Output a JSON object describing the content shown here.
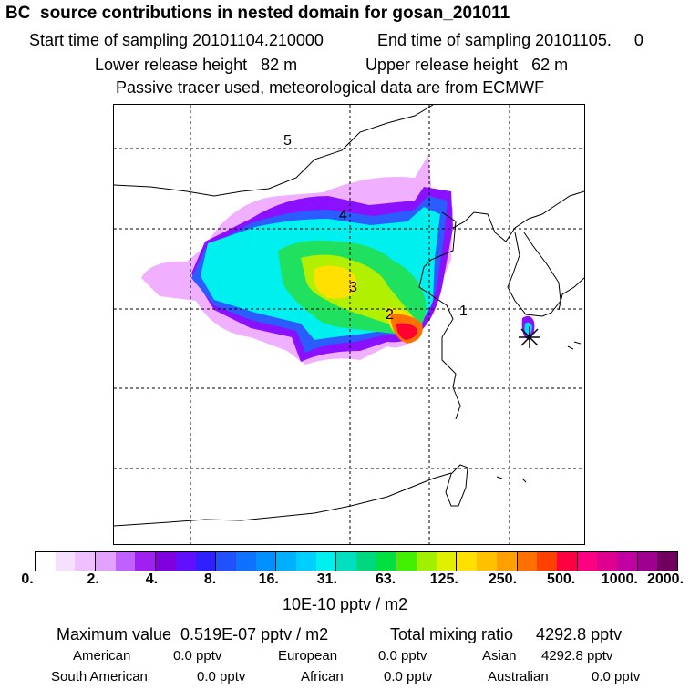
{
  "header": {
    "title": "BC  source contributions in nested domain for gosan_201011",
    "start_label": "Start time of sampling 20101104.210000",
    "end_label": "End time of sampling 20101105.     0",
    "lower_label": "Lower release height   82 m",
    "upper_label": "Upper release height   62 m",
    "tracer_note": "Passive tracer used, meteorological data are from ECMWF"
  },
  "map": {
    "region_labels": [
      "1",
      "2",
      "3",
      "4",
      "5"
    ],
    "receptor_marker": "star-icon"
  },
  "colorbar": {
    "ticks": [
      "0.",
      "2.",
      "4.",
      "8.",
      "16.",
      "31.",
      "63.",
      "125.",
      "250.",
      "500.",
      "1000.",
      "2000."
    ],
    "unit": "10E-10 pptv / m2",
    "colors": [
      "#ffffff",
      "#f7e0ff",
      "#efc0ff",
      "#e2a0ff",
      "#c060ff",
      "#a020f0",
      "#8000e0",
      "#6010ff",
      "#3020ff",
      "#2050ff",
      "#1070ff",
      "#0090ff",
      "#00b0ff",
      "#00d0ff",
      "#00f0f0",
      "#00e0c0",
      "#00d880",
      "#00e040",
      "#40f000",
      "#a0f000",
      "#e0f000",
      "#ffe000",
      "#ffc000",
      "#ffa000",
      "#ff7000",
      "#ff4000",
      "#ff0040",
      "#ff0080",
      "#e00090",
      "#c000a0",
      "#a00090",
      "#700060"
    ]
  },
  "stats": {
    "max_value": "Maximum value  0.519E-07 pptv / m2",
    "total": "Total mixing ratio     4292.8 pptv",
    "american_label": "American",
    "american_value": "0.0 pptv",
    "european_label": "European",
    "european_value": "0.0 pptv",
    "asian_label": "Asian",
    "asian_value": "4292.8 pptv",
    "south_american_label": "South American",
    "south_american_value": "0.0 pptv",
    "african_label": "African",
    "african_value": "0.0 pptv",
    "australian_label": "Australian",
    "australian_value": "0.0 pptv"
  }
}
